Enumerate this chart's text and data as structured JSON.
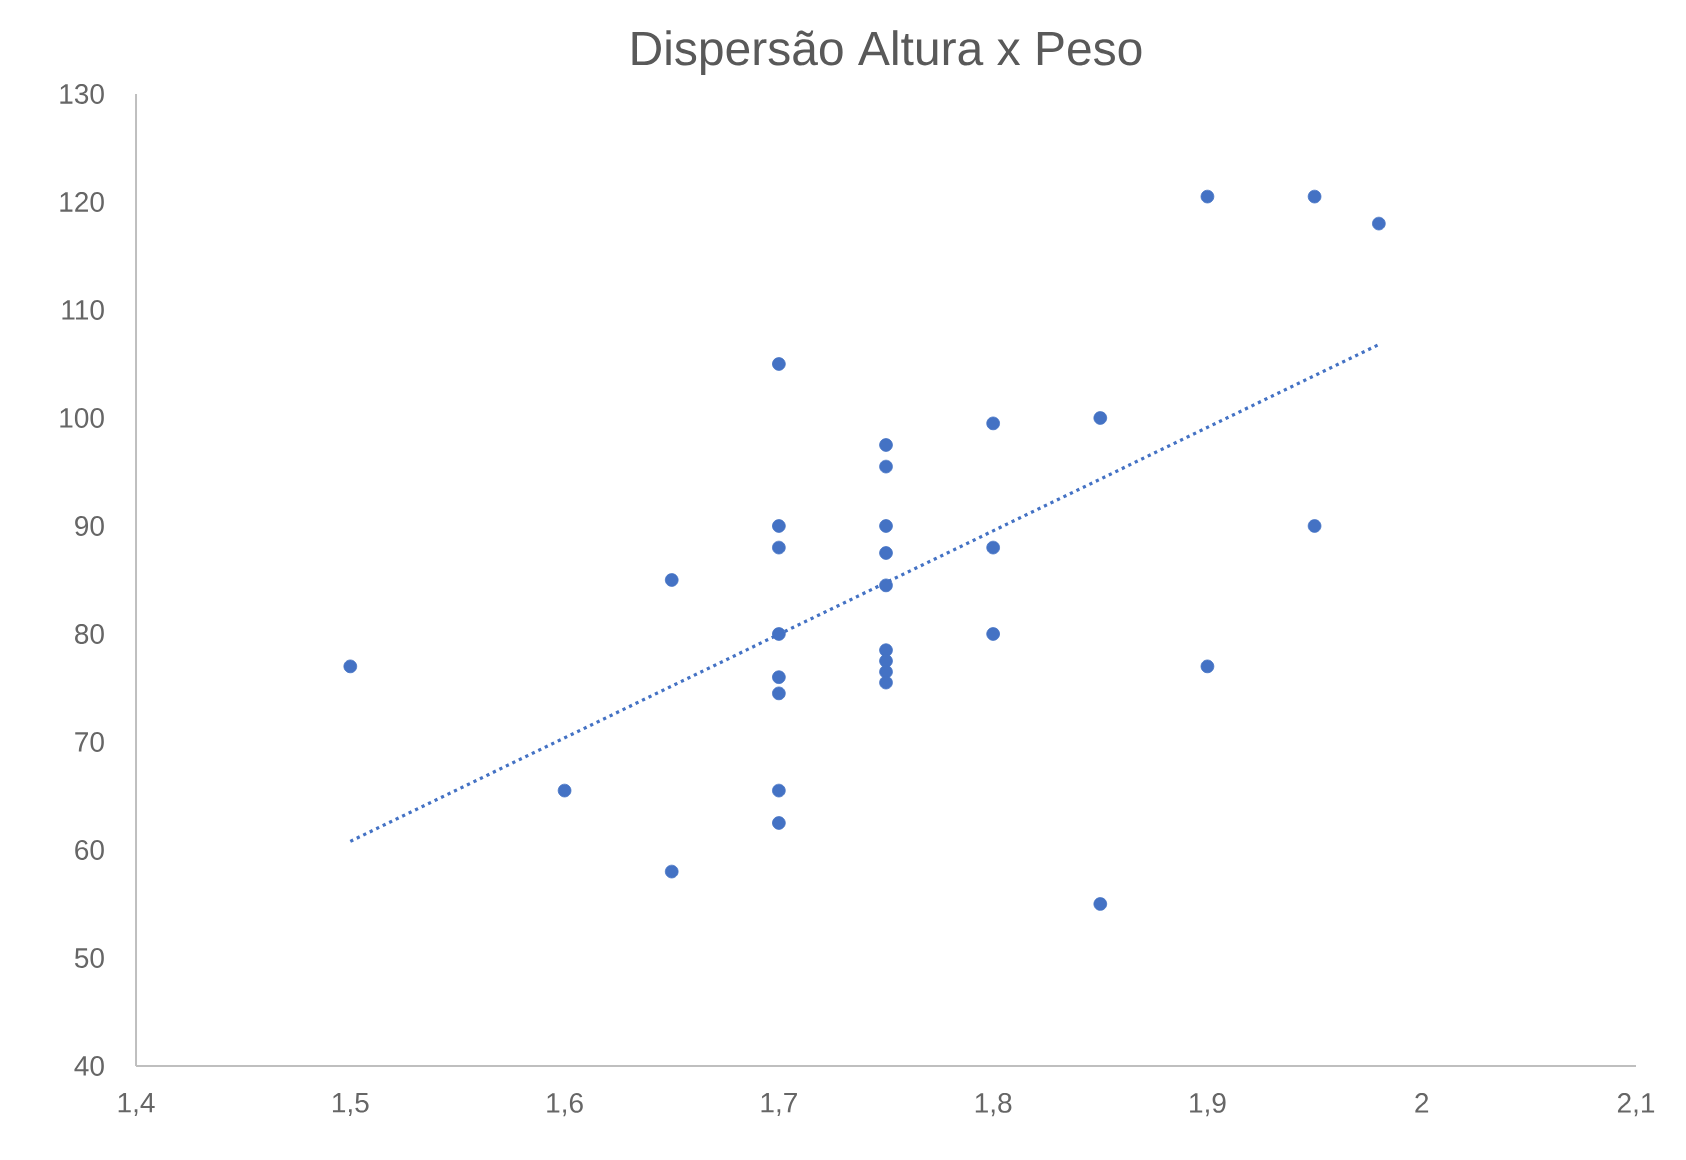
{
  "chart_data": {
    "type": "scatter",
    "title": "Dispersão Altura x Peso",
    "xlim": [
      1.4,
      2.1
    ],
    "xticks": [
      {
        "value": 1.4,
        "label": "1,4"
      },
      {
        "value": 1.5,
        "label": "1,5"
      },
      {
        "value": 1.6,
        "label": "1,6"
      },
      {
        "value": 1.7,
        "label": "1,7"
      },
      {
        "value": 1.8,
        "label": "1,8"
      },
      {
        "value": 1.9,
        "label": "1,9"
      },
      {
        "value": 2,
        "label": "2"
      },
      {
        "value": 2.1,
        "label": "2,1"
      }
    ],
    "ylim": [
      40,
      130
    ],
    "yticks": [
      40,
      50,
      60,
      70,
      80,
      90,
      100,
      110,
      120,
      130
    ],
    "grid": false,
    "series": [
      {
        "color": "#4472c4",
        "marker": "circle",
        "x": [
          1.5,
          1.6,
          1.65,
          1.65,
          1.7,
          1.7,
          1.7,
          1.7,
          1.7,
          1.7,
          1.7,
          1.7,
          1.75,
          1.75,
          1.75,
          1.75,
          1.75,
          1.75,
          1.75,
          1.75,
          1.75,
          1.8,
          1.8,
          1.8,
          1.85,
          1.85,
          1.9,
          1.9,
          1.95,
          1.95,
          1.98
        ],
        "values": [
          77,
          65.5,
          85,
          58,
          105,
          90,
          88,
          80,
          76,
          74.5,
          65.5,
          62.5,
          97.5,
          95.5,
          90,
          87.5,
          84.5,
          78.5,
          77.5,
          76.5,
          75.5,
          99.5,
          88,
          80,
          100,
          55,
          120.5,
          77,
          120.5,
          90,
          118
        ]
      },
      {
        "type": "line",
        "color": "#4472c4",
        "line_style": "dotted",
        "marker": "none",
        "x": [
          1.5,
          1.98
        ],
        "values": [
          60.8,
          106.8
        ]
      }
    ]
  }
}
